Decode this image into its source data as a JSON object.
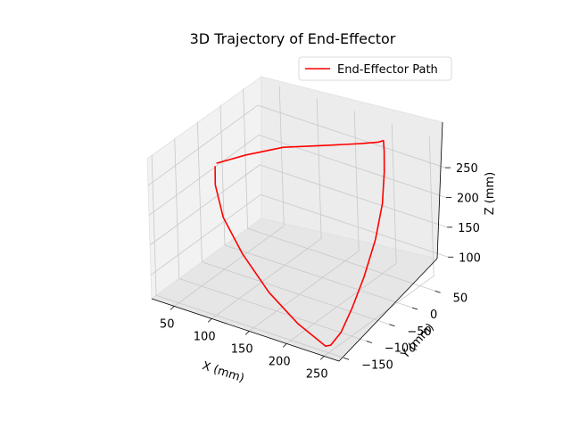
{
  "chart_data": {
    "type": "line",
    "projection": "3d",
    "title": "3D Trajectory of End-Effector",
    "xlabel": "X (mm)",
    "ylabel": "Y (mm)",
    "zlabel": "Z (mm)",
    "xticks": [
      "50",
      "100",
      "150",
      "200",
      "250"
    ],
    "yticks": [
      "−150",
      "−100",
      "−50",
      "0",
      "50"
    ],
    "zticks": [
      "100",
      "150",
      "200",
      "250"
    ],
    "grid": true,
    "legend_position": "top-right",
    "series": [
      {
        "name": "End-Effector Path",
        "color": "#ff0000",
        "points": [
          {
            "x": 28,
            "y": -25,
            "z": 215
          },
          {
            "x": 60,
            "y": -12,
            "z": 235
          },
          {
            "x": 100,
            "y": 5,
            "z": 255
          },
          {
            "x": 150,
            "y": 22,
            "z": 270
          },
          {
            "x": 185,
            "y": 35,
            "z": 280
          },
          {
            "x": 205,
            "y": 42,
            "z": 287
          },
          {
            "x": 210,
            "y": 45,
            "z": 290
          },
          {
            "x": 220,
            "y": 30,
            "z": 285
          },
          {
            "x": 235,
            "y": 5,
            "z": 270
          },
          {
            "x": 250,
            "y": -25,
            "z": 240
          },
          {
            "x": 258,
            "y": -55,
            "z": 200
          },
          {
            "x": 260,
            "y": -85,
            "z": 155
          },
          {
            "x": 258,
            "y": -110,
            "z": 115
          },
          {
            "x": 255,
            "y": -130,
            "z": 85
          },
          {
            "x": 250,
            "y": -145,
            "z": 70
          },
          {
            "x": 245,
            "y": -148,
            "z": 68
          },
          {
            "x": 200,
            "y": -135,
            "z": 80
          },
          {
            "x": 150,
            "y": -115,
            "z": 100
          },
          {
            "x": 100,
            "y": -90,
            "z": 130
          },
          {
            "x": 60,
            "y": -65,
            "z": 160
          },
          {
            "x": 35,
            "y": -40,
            "z": 190
          },
          {
            "x": 28,
            "y": -28,
            "z": 212
          }
        ]
      }
    ]
  }
}
